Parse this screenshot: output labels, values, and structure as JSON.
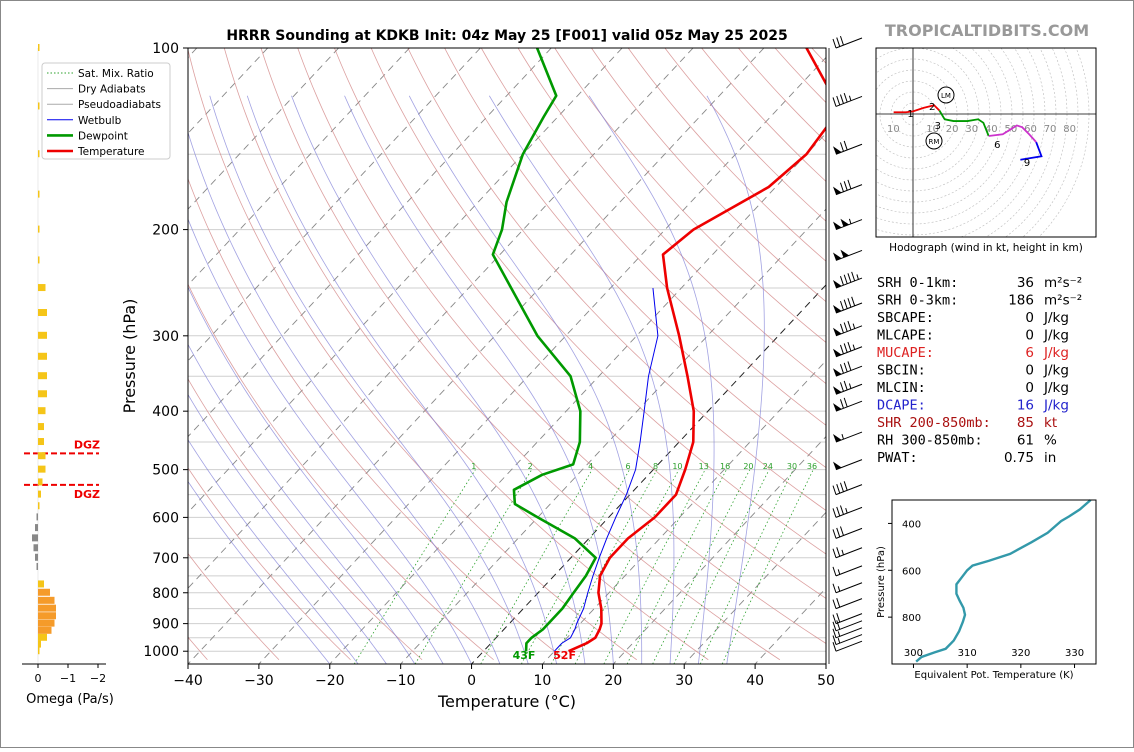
{
  "title": "HRRR Sounding at KDKB Init: 04z May 25 [F001] valid 05z May 25 2025",
  "brand": "TROPICALTIDBITS.COM",
  "chart_data": [
    {
      "type": "skew-t",
      "xlabel": "Temperature (°C)",
      "ylabel": "Pressure (hPa)",
      "xlim": [
        -40,
        50
      ],
      "ylim": [
        1050,
        100
      ],
      "y_scale": "log",
      "x_ticks": [
        "−40",
        "−30",
        "−20",
        "−10",
        "0",
        "10",
        "20",
        "30",
        "40",
        "50"
      ],
      "y_ticks": [
        "100",
        "200",
        "300",
        "400",
        "500",
        "600",
        "700",
        "800",
        "900",
        "1000"
      ],
      "legend": {
        "position": "top-left",
        "entries": [
          {
            "label": "Sat. Mix. Ratio",
            "color": "#2ca02c"
          },
          {
            "label": "Dry Adiabats",
            "color": "#aaaaaa"
          },
          {
            "label": "Pseudoadiabats",
            "color": "#aaaaaa"
          },
          {
            "label": "Wetbulb",
            "color": "#0000ee"
          },
          {
            "label": "Dewpoint",
            "color": "#009900"
          },
          {
            "label": "Temperature",
            "color": "#ee0000"
          }
        ]
      },
      "mixing_ratio_labels": [
        "1",
        "2",
        "4",
        "6",
        "8",
        "10",
        "13",
        "16",
        "20",
        "24",
        "30",
        "36"
      ],
      "mixing_ratio_values": [
        1,
        2,
        4,
        6,
        8,
        10,
        13,
        16,
        20,
        24,
        30,
        36
      ],
      "temperature": [
        [
          1000,
          12
        ],
        [
          970,
          13.5
        ],
        [
          950,
          14
        ],
        [
          920,
          13.5
        ],
        [
          900,
          13
        ],
        [
          850,
          11
        ],
        [
          800,
          8.5
        ],
        [
          750,
          6.5
        ],
        [
          700,
          5.5
        ],
        [
          650,
          5.5
        ],
        [
          600,
          6.5
        ],
        [
          550,
          6.5
        ],
        [
          500,
          4.5
        ],
        [
          450,
          2
        ],
        [
          400,
          -2
        ],
        [
          350,
          -7.5
        ],
        [
          300,
          -14
        ],
        [
          250,
          -22
        ],
        [
          220,
          -27
        ],
        [
          200,
          -26
        ],
        [
          170,
          -21
        ],
        [
          150,
          -20
        ],
        [
          130,
          -21
        ],
        [
          120,
          -24
        ],
        [
          100,
          -34
        ]
      ],
      "dewpoint": [
        [
          1000,
          6
        ],
        [
          970,
          5
        ],
        [
          950,
          5
        ],
        [
          920,
          5.5
        ],
        [
          900,
          5.5
        ],
        [
          850,
          5.5
        ],
        [
          800,
          5
        ],
        [
          750,
          4.5
        ],
        [
          700,
          3.5
        ],
        [
          650,
          -2
        ],
        [
          600,
          -10
        ],
        [
          570,
          -15
        ],
        [
          540,
          -17
        ],
        [
          510,
          -15
        ],
        [
          490,
          -12
        ],
        [
          450,
          -14
        ],
        [
          400,
          -18
        ],
        [
          350,
          -24
        ],
        [
          300,
          -34
        ],
        [
          250,
          -44
        ],
        [
          220,
          -51
        ],
        [
          200,
          -53
        ],
        [
          180,
          -56
        ],
        [
          150,
          -60
        ],
        [
          130,
          -62
        ],
        [
          120,
          -63
        ],
        [
          100,
          -72
        ]
      ],
      "wetbulb": [
        [
          1000,
          10
        ],
        [
          970,
          10
        ],
        [
          950,
          10.5
        ],
        [
          920,
          10
        ],
        [
          900,
          9.5
        ],
        [
          850,
          8.5
        ],
        [
          800,
          7
        ],
        [
          750,
          5.5
        ],
        [
          700,
          4
        ],
        [
          650,
          2.5
        ],
        [
          600,
          1
        ],
        [
          550,
          -0.5
        ],
        [
          500,
          -2.5
        ],
        [
          450,
          -5.5
        ],
        [
          400,
          -9
        ],
        [
          350,
          -13
        ],
        [
          300,
          -17
        ],
        [
          250,
          -24
        ]
      ],
      "dgz": {
        "label": "DGZ",
        "top_hpa": 530,
        "bottom_hpa": 470
      },
      "surface_labels": {
        "dewpoint": "43F",
        "temperature": "52F"
      },
      "wind_barbs_kt": [
        {
          "p": 1000,
          "spd": 10
        },
        {
          "p": 975,
          "spd": 15
        },
        {
          "p": 950,
          "spd": 15
        },
        {
          "p": 925,
          "spd": 20
        },
        {
          "p": 900,
          "spd": 20
        },
        {
          "p": 850,
          "spd": 20
        },
        {
          "p": 800,
          "spd": 15
        },
        {
          "p": 750,
          "spd": 15
        },
        {
          "p": 700,
          "spd": 25
        },
        {
          "p": 650,
          "spd": 30
        },
        {
          "p": 600,
          "spd": 35
        },
        {
          "p": 550,
          "spd": 40
        },
        {
          "p": 500,
          "spd": 50
        },
        {
          "p": 450,
          "spd": 55
        },
        {
          "p": 400,
          "spd": 70
        },
        {
          "p": 375,
          "spd": 75
        },
        {
          "p": 350,
          "spd": 80
        },
        {
          "p": 325,
          "spd": 85
        },
        {
          "p": 300,
          "spd": 85
        },
        {
          "p": 275,
          "spd": 90
        },
        {
          "p": 250,
          "spd": 95
        },
        {
          "p": 225,
          "spd": 100
        },
        {
          "p": 200,
          "spd": 105
        },
        {
          "p": 175,
          "spd": 80
        },
        {
          "p": 150,
          "spd": 70
        },
        {
          "p": 125,
          "spd": 45
        },
        {
          "p": 100,
          "spd": 30
        }
      ]
    },
    {
      "type": "hodograph",
      "caption": "Hodograph (wind in kt, height in km)",
      "ring_labels": [
        "10",
        "10",
        "20",
        "30",
        "40",
        "50",
        "60",
        "70",
        "80"
      ],
      "markers": {
        "LM": "LM",
        "RM": "RM"
      },
      "height_labels": [
        "1",
        "2",
        "3",
        "6",
        "9"
      ],
      "segments": [
        {
          "color": "#ee0000",
          "points": [
            [
              -22,
              2
            ],
            [
              -16,
              2
            ],
            [
              -8,
              2
            ],
            [
              0,
              3
            ],
            [
              12,
              7
            ],
            [
              24,
              10
            ],
            [
              30,
              4
            ]
          ]
        },
        {
          "color": "#009900",
          "points": [
            [
              30,
              4
            ],
            [
              36,
              -6
            ],
            [
              46,
              -8
            ],
            [
              62,
              -8
            ],
            [
              74,
              -6
            ],
            [
              80,
              -10
            ],
            [
              86,
              -25
            ]
          ]
        },
        {
          "color": "#cc33cc",
          "points": [
            [
              86,
              -25
            ],
            [
              102,
              -23
            ],
            [
              118,
              -13
            ],
            [
              124,
              -15
            ],
            [
              132,
              -23
            ],
            [
              140,
              -32
            ]
          ]
        },
        {
          "color": "#0000ee",
          "points": [
            [
              140,
              -32
            ],
            [
              146,
              -48
            ],
            [
              134,
              -50
            ],
            [
              122,
              -52
            ]
          ]
        }
      ]
    },
    {
      "type": "line",
      "xlabel": "Equivalent Pot. Temperature (K)",
      "ylabel": "Pressure (hPa)",
      "x_ticks": [
        "300",
        "310",
        "320",
        "330"
      ],
      "y_ticks": [
        "400",
        "600",
        "800"
      ],
      "xlim": [
        296,
        334
      ],
      "ylim": [
        1000,
        300
      ],
      "series": [
        {
          "color": "#3399aa",
          "points": [
            [
              300.5,
              990
            ],
            [
              301.5,
              970
            ],
            [
              304,
              950
            ],
            [
              306,
              935
            ],
            [
              307.5,
              900
            ],
            [
              308.5,
              860
            ],
            [
              309.2,
              820
            ],
            [
              309.6,
              790
            ],
            [
              309.3,
              760
            ],
            [
              308.6,
              730
            ],
            [
              308,
              700
            ],
            [
              308,
              660
            ],
            [
              309,
              630
            ],
            [
              310,
              600
            ],
            [
              311,
              580
            ],
            [
              314,
              560
            ],
            [
              318,
              530
            ],
            [
              322,
              480
            ],
            [
              325,
              440
            ],
            [
              326.5,
              410
            ],
            [
              327.5,
              390
            ],
            [
              329,
              370
            ],
            [
              331,
              340
            ],
            [
              333,
              300
            ]
          ]
        }
      ]
    },
    {
      "type": "bar",
      "xlabel": "Omega (Pa/s)",
      "x_ticks": [
        "0",
        "−1",
        "−2"
      ],
      "values_pa_s": [
        {
          "p": 1000,
          "v": -0.05
        },
        {
          "p": 975,
          "v": -0.1
        },
        {
          "p": 950,
          "v": -0.3
        },
        {
          "p": 925,
          "v": -0.45
        },
        {
          "p": 900,
          "v": -0.55
        },
        {
          "p": 875,
          "v": -0.6
        },
        {
          "p": 850,
          "v": -0.6
        },
        {
          "p": 825,
          "v": -0.55
        },
        {
          "p": 800,
          "v": -0.4
        },
        {
          "p": 775,
          "v": -0.2
        },
        {
          "p": 725,
          "v": 0.05
        },
        {
          "p": 700,
          "v": 0.1
        },
        {
          "p": 675,
          "v": 0.15
        },
        {
          "p": 650,
          "v": 0.2
        },
        {
          "p": 625,
          "v": 0.1
        },
        {
          "p": 600,
          "v": 0.05
        },
        {
          "p": 575,
          "v": -0.05
        },
        {
          "p": 550,
          "v": -0.1
        },
        {
          "p": 525,
          "v": -0.15
        },
        {
          "p": 500,
          "v": -0.25
        },
        {
          "p": 475,
          "v": -0.25
        },
        {
          "p": 450,
          "v": -0.2
        },
        {
          "p": 425,
          "v": -0.2
        },
        {
          "p": 400,
          "v": -0.25
        },
        {
          "p": 375,
          "v": -0.3
        },
        {
          "p": 350,
          "v": -0.3
        },
        {
          "p": 325,
          "v": -0.3
        },
        {
          "p": 300,
          "v": -0.3
        },
        {
          "p": 275,
          "v": -0.3
        },
        {
          "p": 250,
          "v": -0.25
        },
        {
          "p": 225,
          "v": -0.02
        },
        {
          "p": 200,
          "v": -0.02
        },
        {
          "p": 175,
          "v": -0.02
        },
        {
          "p": 150,
          "v": -0.02
        },
        {
          "p": 125,
          "v": -0.02
        },
        {
          "p": 100,
          "v": -0.02
        }
      ]
    }
  ],
  "indices": [
    {
      "label": "SRH 0-1km:",
      "value": "36",
      "unit": "m²s⁻²",
      "color": "#000000"
    },
    {
      "label": "SRH 0-3km:",
      "value": "186",
      "unit": "m²s⁻²",
      "color": "#000000"
    },
    {
      "label": "SBCAPE:",
      "value": "0",
      "unit": "J/kg",
      "color": "#000000"
    },
    {
      "label": "MLCAPE:",
      "value": "0",
      "unit": "J/kg",
      "color": "#000000"
    },
    {
      "label": "MUCAPE:",
      "value": "6",
      "unit": "J/kg",
      "color": "#dd2222"
    },
    {
      "label": "SBCIN:",
      "value": "0",
      "unit": "J/kg",
      "color": "#000000"
    },
    {
      "label": "MLCIN:",
      "value": "0",
      "unit": "J/kg",
      "color": "#000000"
    },
    {
      "label": "DCAPE:",
      "value": "16",
      "unit": "J/kg",
      "color": "#2222cc"
    },
    {
      "label": "SHR 200-850mb:",
      "value": "85",
      "unit": "kt",
      "color": "#aa1111"
    },
    {
      "label": "RH 300-850mb:",
      "value": "61",
      "unit": "%",
      "color": "#000000"
    },
    {
      "label": "PWAT:",
      "value": "0.75",
      "unit": "in",
      "color": "#000000"
    }
  ]
}
